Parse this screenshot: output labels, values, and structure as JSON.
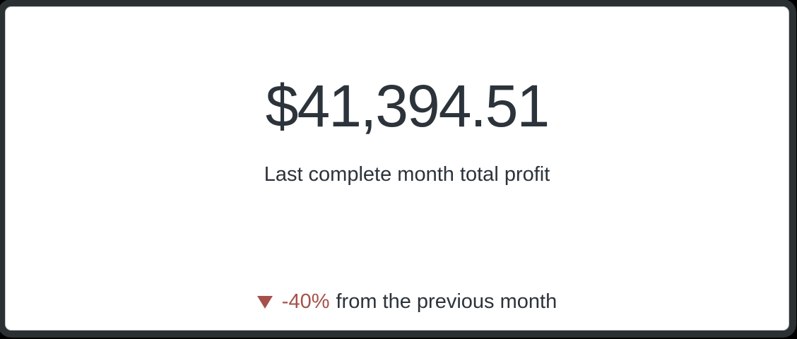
{
  "card": {
    "value": "$41,394.51",
    "label": "Last complete month total profit",
    "comparison": {
      "arrow": "down-triangle",
      "delta": "-40%",
      "text": "from the previous month",
      "direction": "down"
    }
  },
  "chart_data": {
    "type": "scorecard",
    "title": "Last complete month total profit",
    "value": 41394.51,
    "value_formatted": "$41,394.51",
    "comparison": {
      "change_percent": -40,
      "change_formatted": "-40%",
      "direction": "down",
      "label": "from the previous month"
    }
  },
  "colors": {
    "text_color": "#2c333a",
    "negative_color": "#a5514b",
    "card_bg": "#ffffff",
    "card_border": "#c6c9ca",
    "card_ring": "#2b3133",
    "page_bg": "#000000"
  }
}
